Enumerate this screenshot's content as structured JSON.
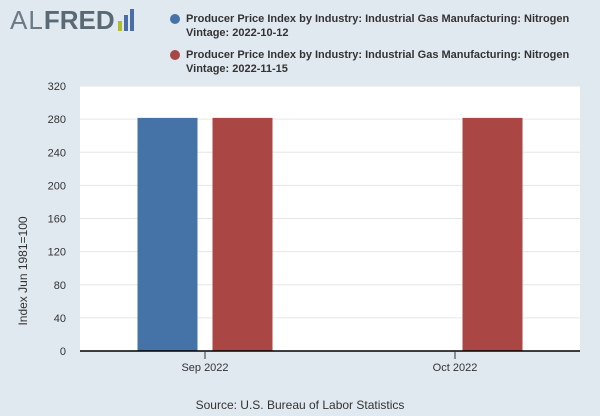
{
  "logo": {
    "prefix": "AL",
    "name": "FRED",
    "bar_colors": [
      "#b0bd2e",
      "#4a6da7",
      "#4a6da7"
    ]
  },
  "source": "Source: U.S. Bureau of Labor Statistics",
  "chart_data": {
    "type": "bar",
    "categories": [
      "Sep 2022",
      "Oct 2022"
    ],
    "series": [
      {
        "name": "Producer Price Index by Industry: Industrial Gas Manufacturing: Nitrogen Vintage: 2022-10-12",
        "color": "#4572a7",
        "values": [
          281.5,
          null
        ]
      },
      {
        "name": "Producer Price Index by Industry: Industrial Gas Manufacturing: Nitrogen Vintage: 2022-11-15",
        "color": "#aa4643",
        "values": [
          281.5,
          281.5
        ]
      }
    ],
    "ylabel": "Index Jun 1981=100",
    "ylim": [
      0,
      320
    ],
    "yticks": [
      0,
      40,
      80,
      120,
      160,
      200,
      240,
      280,
      320
    ],
    "grid": true,
    "legend_position": "top"
  }
}
